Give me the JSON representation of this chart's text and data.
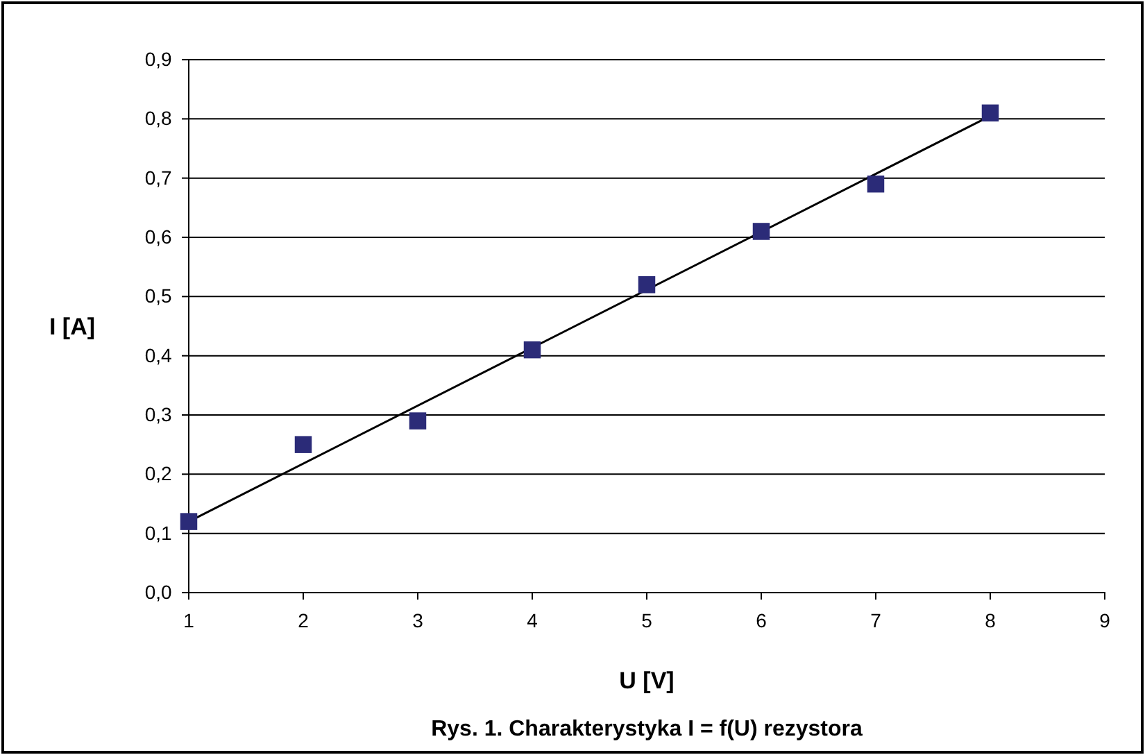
{
  "chart_data": {
    "type": "scatter",
    "xlabel": "U [V]",
    "ylabel": "I [A]",
    "annotations": [
      "Rys. 1. Charakterystyka I = f(U) rezystora"
    ],
    "xlim": [
      1,
      9
    ],
    "xticks": [
      1,
      2,
      3,
      4,
      5,
      6,
      7,
      8,
      9
    ],
    "ylim": [
      0,
      0.9
    ],
    "yticks": [
      {
        "value": 0,
        "label": "0,0"
      },
      {
        "value": 0.1,
        "label": "0,1"
      },
      {
        "value": 0.2,
        "label": "0,2"
      },
      {
        "value": 0.3,
        "label": "0,3"
      },
      {
        "value": 0.4,
        "label": "0,4"
      },
      {
        "value": 0.5,
        "label": "0,5"
      },
      {
        "value": 0.6,
        "label": "0,6"
      },
      {
        "value": 0.7,
        "label": "0,7"
      },
      {
        "value": 0.8,
        "label": "0,8"
      },
      {
        "value": 0.9,
        "label": "0,9"
      }
    ],
    "grid": "y",
    "marker": "square",
    "series": [
      {
        "type": "line",
        "color": "#000000",
        "x": [
          1,
          8
        ],
        "values": [
          0.12,
          0.805
        ],
        "marker": "none",
        "line_style": "solid"
      },
      {
        "type": "scatter",
        "color": "#2b2b78",
        "x": [
          1,
          2,
          3,
          4,
          5,
          6,
          7,
          8
        ],
        "values": [
          0.12,
          0.25,
          0.29,
          0.41,
          0.52,
          0.61,
          0.69,
          0.81
        ]
      }
    ]
  }
}
